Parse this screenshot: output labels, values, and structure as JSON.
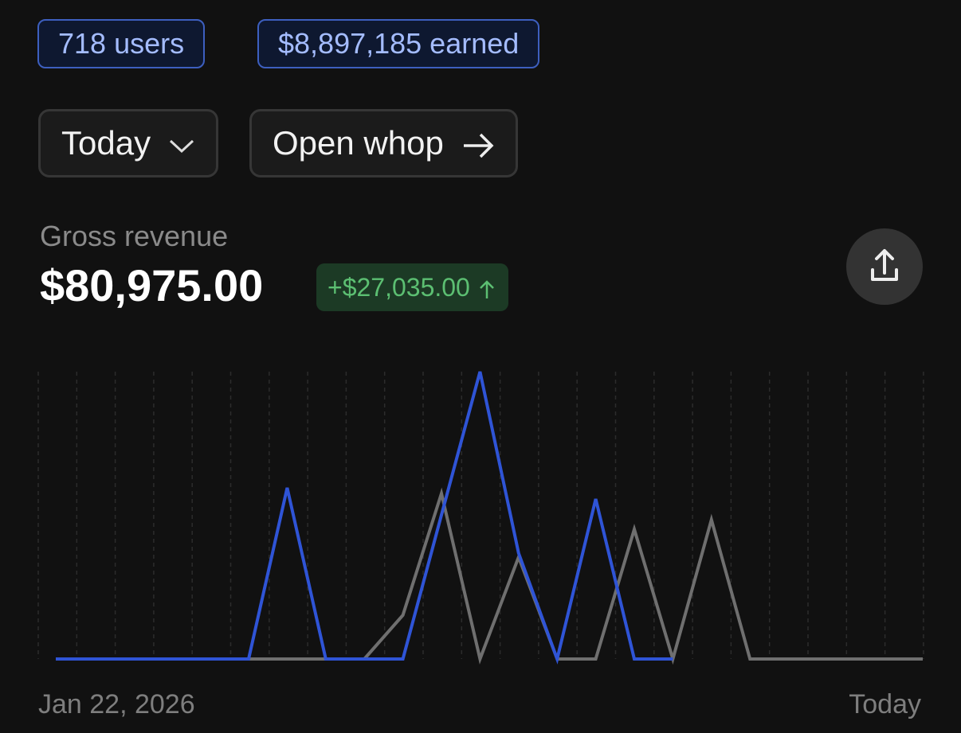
{
  "badges": [
    "718 users",
    "$8,897,185 earned"
  ],
  "controls": {
    "range": "Today",
    "open": "Open whop"
  },
  "metric": {
    "label": "Gross revenue",
    "value": "$80,975.00",
    "delta": "+$27,035.00"
  },
  "chart_data": {
    "type": "line",
    "x_labels": [
      "Jan 22, 2026",
      "Today"
    ],
    "series": [
      {
        "color": "#6f6f6f",
        "values": [
          0,
          0,
          0,
          0,
          0,
          0,
          0,
          0,
          0,
          55,
          208,
          0,
          128,
          0,
          0,
          163,
          0,
          175,
          0,
          0,
          0,
          0,
          0,
          0
        ]
      },
      {
        "color": "#2f54d6",
        "values": [
          0,
          0,
          0,
          0,
          0,
          0,
          215,
          0,
          0,
          0,
          181,
          361,
          133,
          0,
          201,
          0,
          0,
          null,
          null,
          null,
          null,
          null,
          null,
          null
        ]
      }
    ]
  }
}
